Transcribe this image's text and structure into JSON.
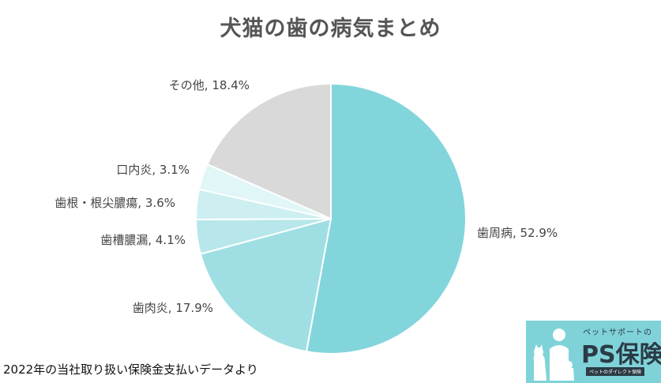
{
  "title": "犬猫の歯の病気まとめ",
  "footnote": "2022年の当社取り扱い保険金支払いデータより",
  "logo": {
    "tagline_top": "ペットサポートの",
    "brand": "PS保険",
    "tagline_bottom": "ペットのダイレクト保険",
    "icon": "pet-silhouette-icon"
  },
  "chart_data": {
    "type": "pie",
    "start_angle_deg": 0,
    "direction": "clockwise",
    "slices": [
      {
        "label": "歯周病",
        "value": 52.9,
        "text": "歯周病, 52.9%",
        "color": "#83d5dc"
      },
      {
        "label": "歯肉炎",
        "value": 17.9,
        "text": "歯肉炎, 17.9%",
        "color": "#9fdfe3"
      },
      {
        "label": "歯槽膿漏",
        "value": 4.1,
        "text": "歯槽膿漏, 4.1%",
        "color": "#b7e7ea"
      },
      {
        "label": "歯根・根尖膿瘍",
        "value": 3.6,
        "text": "歯根・根尖膿瘍, 3.6%",
        "color": "#cdeff1"
      },
      {
        "label": "口内炎",
        "value": 3.1,
        "text": "口内炎, 3.1%",
        "color": "#e0f6f7"
      },
      {
        "label": "その他",
        "value": 18.4,
        "text": "その他, 18.4%",
        "color": "#d9d9d9"
      }
    ]
  }
}
